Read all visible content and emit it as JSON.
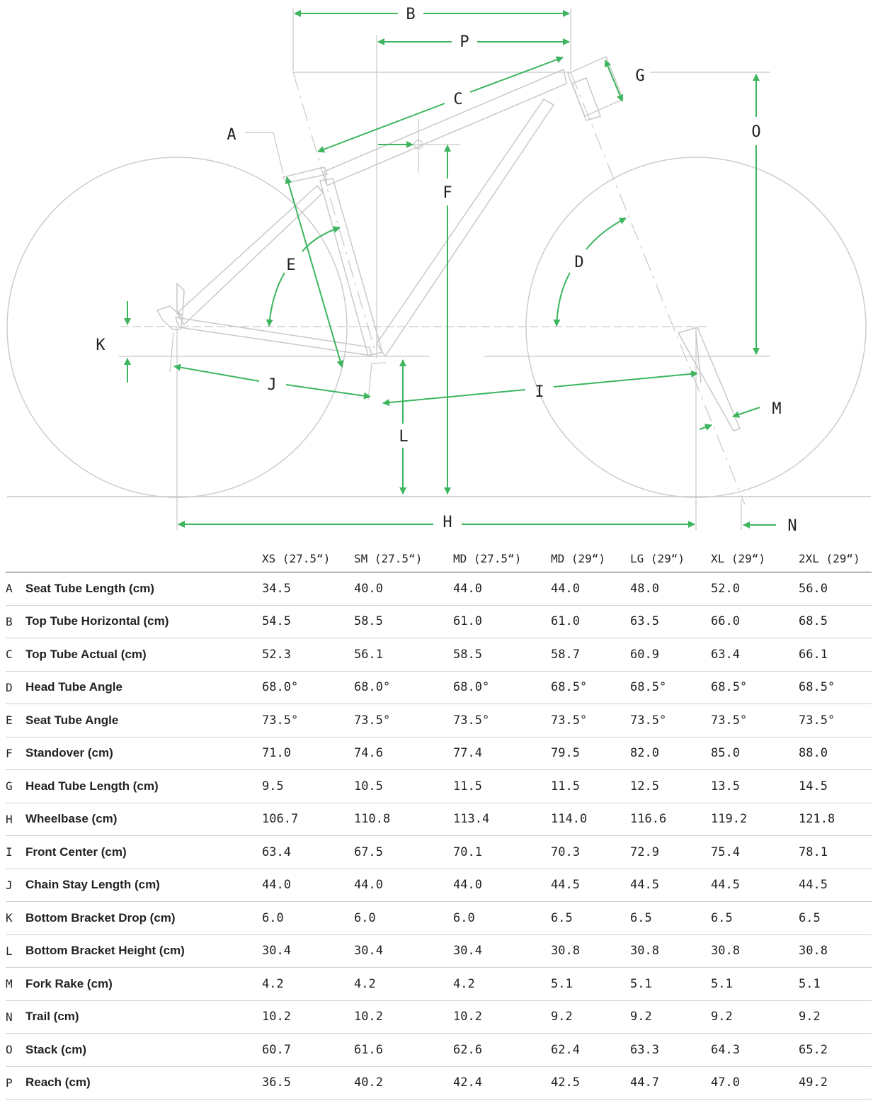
{
  "colors": {
    "accent": "#3cb55e",
    "frame": "#c8c8c8",
    "text": "#222222"
  },
  "diagram": {
    "labels": {
      "A": "A",
      "B": "B",
      "C": "C",
      "D": "D",
      "E": "E",
      "F": "F",
      "G": "G",
      "H": "H",
      "I": "I",
      "J": "J",
      "K": "K",
      "L": "L",
      "M": "M",
      "N": "N",
      "O": "O",
      "P": "P"
    }
  },
  "table": {
    "headers": [
      "XS (27.5“)",
      "SM (27.5“)",
      "MD (27.5“)",
      "MD (29“)",
      "LG (29“)",
      "XL (29“)",
      "2XL (29“)"
    ],
    "rows": [
      {
        "letter": "A",
        "name": "Seat Tube Length (cm)",
        "values": [
          "34.5",
          "40.0",
          "44.0",
          "44.0",
          "48.0",
          "52.0",
          "56.0"
        ]
      },
      {
        "letter": "B",
        "name": "Top Tube Horizontal (cm)",
        "values": [
          "54.5",
          "58.5",
          "61.0",
          "61.0",
          "63.5",
          "66.0",
          "68.5"
        ]
      },
      {
        "letter": "C",
        "name": "Top Tube Actual (cm)",
        "values": [
          "52.3",
          "56.1",
          "58.5",
          "58.7",
          "60.9",
          "63.4",
          "66.1"
        ]
      },
      {
        "letter": "D",
        "name": "Head Tube Angle",
        "values": [
          "68.0°",
          "68.0°",
          "68.0°",
          "68.5°",
          "68.5°",
          "68.5°",
          "68.5°"
        ]
      },
      {
        "letter": "E",
        "name": "Seat Tube Angle",
        "values": [
          "73.5°",
          "73.5°",
          "73.5°",
          "73.5°",
          "73.5°",
          "73.5°",
          "73.5°"
        ]
      },
      {
        "letter": "F",
        "name": "Standover (cm)",
        "values": [
          "71.0",
          "74.6",
          "77.4",
          "79.5",
          "82.0",
          "85.0",
          "88.0"
        ]
      },
      {
        "letter": "G",
        "name": "Head Tube Length (cm)",
        "values": [
          "9.5",
          "10.5",
          "11.5",
          "11.5",
          "12.5",
          "13.5",
          "14.5"
        ]
      },
      {
        "letter": "H",
        "name": "Wheelbase (cm)",
        "values": [
          "106.7",
          "110.8",
          "113.4",
          "114.0",
          "116.6",
          "119.2",
          "121.8"
        ]
      },
      {
        "letter": "I",
        "name": "Front Center (cm)",
        "values": [
          "63.4",
          "67.5",
          "70.1",
          "70.3",
          "72.9",
          "75.4",
          "78.1"
        ]
      },
      {
        "letter": "J",
        "name": "Chain Stay Length (cm)",
        "values": [
          "44.0",
          "44.0",
          "44.0",
          "44.5",
          "44.5",
          "44.5",
          "44.5"
        ]
      },
      {
        "letter": "K",
        "name": "Bottom Bracket Drop (cm)",
        "values": [
          "6.0",
          "6.0",
          "6.0",
          "6.5",
          "6.5",
          "6.5",
          "6.5"
        ]
      },
      {
        "letter": "L",
        "name": "Bottom Bracket Height (cm)",
        "values": [
          "30.4",
          "30.4",
          "30.4",
          "30.8",
          "30.8",
          "30.8",
          "30.8"
        ]
      },
      {
        "letter": "M",
        "name": "Fork Rake (cm)",
        "values": [
          "4.2",
          "4.2",
          "4.2",
          "5.1",
          "5.1",
          "5.1",
          "5.1"
        ]
      },
      {
        "letter": "N",
        "name": "Trail (cm)",
        "values": [
          "10.2",
          "10.2",
          "10.2",
          "9.2",
          "9.2",
          "9.2",
          "9.2"
        ]
      },
      {
        "letter": "O",
        "name": "Stack (cm)",
        "values": [
          "60.7",
          "61.6",
          "62.6",
          "62.4",
          "63.3",
          "64.3",
          "65.2"
        ]
      },
      {
        "letter": "P",
        "name": "Reach (cm)",
        "values": [
          "36.5",
          "40.2",
          "42.4",
          "42.5",
          "44.7",
          "47.0",
          "49.2"
        ]
      }
    ]
  }
}
